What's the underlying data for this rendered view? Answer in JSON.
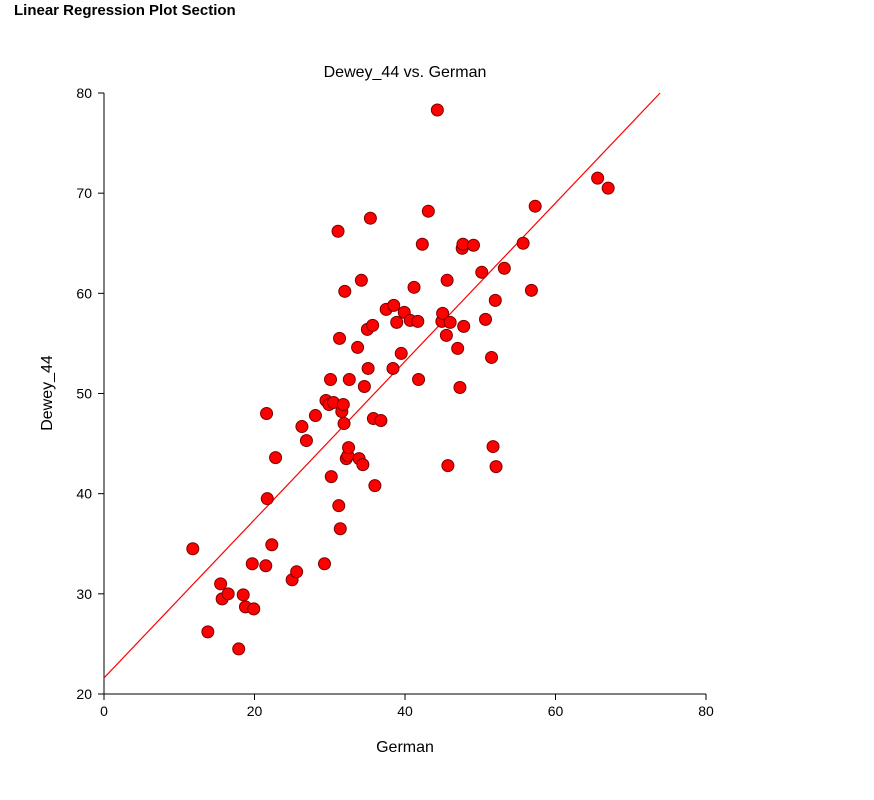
{
  "page": {
    "section_title": "Linear Regression Plot Section"
  },
  "colors": {
    "point_fill": "#ff0000",
    "point_stroke": "#7a0000",
    "regression_line": "#ff0000",
    "axis": "#000000"
  },
  "chart_data": {
    "type": "scatter",
    "title": "Dewey_44 vs. German",
    "xlabel": "German",
    "ylabel": "Dewey_44",
    "xlim": [
      0,
      80
    ],
    "ylim": [
      20,
      80
    ],
    "xticks": [
      0,
      20,
      40,
      60,
      80
    ],
    "yticks": [
      20,
      30,
      40,
      50,
      60,
      70,
      80
    ],
    "grid": false,
    "legend": "none",
    "regression_line": {
      "x": [
        0,
        73.9
      ],
      "y": [
        21.6,
        80
      ]
    },
    "points": [
      [
        11.8,
        34.5
      ],
      [
        13.8,
        26.2
      ],
      [
        15.5,
        31.0
      ],
      [
        15.7,
        29.5
      ],
      [
        16.5,
        30.0
      ],
      [
        17.9,
        24.5
      ],
      [
        18.5,
        29.9
      ],
      [
        18.8,
        28.7
      ],
      [
        19.7,
        33.0
      ],
      [
        19.9,
        28.5
      ],
      [
        21.5,
        32.8
      ],
      [
        21.6,
        48.0
      ],
      [
        21.7,
        39.5
      ],
      [
        22.3,
        34.9
      ],
      [
        22.8,
        43.6
      ],
      [
        25.0,
        31.4
      ],
      [
        25.6,
        32.2
      ],
      [
        26.3,
        46.7
      ],
      [
        26.9,
        45.3
      ],
      [
        28.1,
        47.8
      ],
      [
        29.3,
        33.0
      ],
      [
        29.5,
        49.3
      ],
      [
        29.9,
        48.9
      ],
      [
        30.1,
        51.4
      ],
      [
        30.2,
        41.7
      ],
      [
        30.5,
        49.1
      ],
      [
        31.1,
        66.2
      ],
      [
        31.2,
        38.8
      ],
      [
        31.3,
        55.5
      ],
      [
        31.4,
        36.5
      ],
      [
        31.6,
        48.2
      ],
      [
        31.8,
        48.9
      ],
      [
        31.9,
        47.0
      ],
      [
        32.0,
        60.2
      ],
      [
        32.2,
        43.5
      ],
      [
        32.4,
        43.8
      ],
      [
        32.5,
        44.6
      ],
      [
        32.6,
        51.4
      ],
      [
        33.7,
        54.6
      ],
      [
        33.9,
        43.5
      ],
      [
        34.2,
        61.3
      ],
      [
        34.4,
        42.9
      ],
      [
        34.6,
        50.7
      ],
      [
        35.0,
        56.4
      ],
      [
        35.1,
        52.5
      ],
      [
        35.4,
        67.5
      ],
      [
        35.7,
        56.8
      ],
      [
        35.8,
        47.5
      ],
      [
        36.0,
        40.8
      ],
      [
        36.8,
        47.3
      ],
      [
        37.5,
        58.4
      ],
      [
        38.4,
        52.5
      ],
      [
        38.5,
        58.8
      ],
      [
        38.9,
        57.1
      ],
      [
        39.5,
        54.0
      ],
      [
        39.9,
        58.1
      ],
      [
        40.7,
        57.3
      ],
      [
        41.2,
        60.6
      ],
      [
        41.7,
        57.2
      ],
      [
        41.8,
        51.4
      ],
      [
        42.3,
        64.9
      ],
      [
        43.1,
        68.2
      ],
      [
        44.3,
        78.3
      ],
      [
        44.9,
        57.2
      ],
      [
        45.0,
        58.0
      ],
      [
        45.5,
        55.8
      ],
      [
        45.6,
        61.3
      ],
      [
        45.7,
        42.8
      ],
      [
        46.0,
        57.1
      ],
      [
        47.0,
        54.5
      ],
      [
        47.3,
        50.6
      ],
      [
        47.6,
        64.5
      ],
      [
        47.7,
        64.9
      ],
      [
        47.8,
        56.7
      ],
      [
        49.1,
        64.8
      ],
      [
        50.2,
        62.1
      ],
      [
        50.7,
        57.4
      ],
      [
        51.5,
        53.6
      ],
      [
        51.7,
        44.7
      ],
      [
        52.0,
        59.3
      ],
      [
        52.1,
        42.7
      ],
      [
        53.2,
        62.5
      ],
      [
        55.7,
        65.0
      ],
      [
        56.8,
        60.3
      ],
      [
        57.3,
        68.7
      ],
      [
        65.6,
        71.5
      ],
      [
        67.0,
        70.5
      ]
    ]
  }
}
